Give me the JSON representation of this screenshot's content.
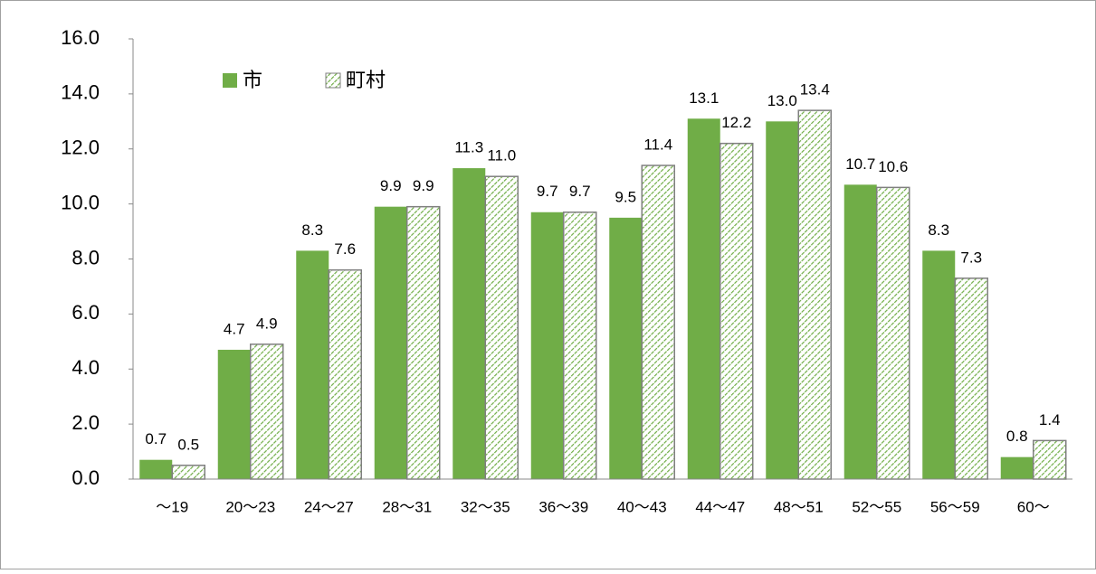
{
  "chart_data": {
    "type": "bar",
    "categories": [
      "～19",
      "20～23",
      "24～27",
      "28～31",
      "32～35",
      "36～39",
      "40～43",
      "44～47",
      "48～51",
      "52～55",
      "56～59",
      "60～"
    ],
    "series": [
      {
        "name": "市",
        "color": "#70ad47",
        "fill_style": "solid",
        "values": [
          0.7,
          4.7,
          8.3,
          9.9,
          11.3,
          9.7,
          9.5,
          13.1,
          13.0,
          10.7,
          8.3,
          0.8
        ],
        "value_labels": [
          "0.7",
          "4.7",
          "8.3",
          "9.9",
          "11.3",
          "9.7",
          "9.5",
          "13.1",
          "13.0",
          "10.7",
          "8.3",
          "0.8"
        ]
      },
      {
        "name": "町村",
        "color": "#70ad47",
        "fill_style": "hatch",
        "values": [
          0.5,
          4.9,
          7.6,
          9.9,
          11.0,
          9.7,
          11.4,
          12.2,
          13.4,
          10.6,
          7.3,
          1.4
        ],
        "value_labels": [
          "0.5",
          "4.9",
          "7.6",
          "9.9",
          "11.0",
          "9.7",
          "11.4",
          "12.2",
          "13.4",
          "10.6",
          "7.3",
          "1.4"
        ]
      }
    ],
    "ylim": [
      0,
      16
    ],
    "yticks": [
      {
        "value": 0,
        "label": "0.0"
      },
      {
        "value": 2,
        "label": "2.0"
      },
      {
        "value": 4,
        "label": "4.0"
      },
      {
        "value": 6,
        "label": "6.0"
      },
      {
        "value": 8,
        "label": "8.0"
      },
      {
        "value": 10,
        "label": "10.0"
      },
      {
        "value": 12,
        "label": "12.0"
      },
      {
        "value": 14,
        "label": "14.0"
      },
      {
        "value": 16,
        "label": "16.0"
      }
    ],
    "legend": "upper left"
  }
}
